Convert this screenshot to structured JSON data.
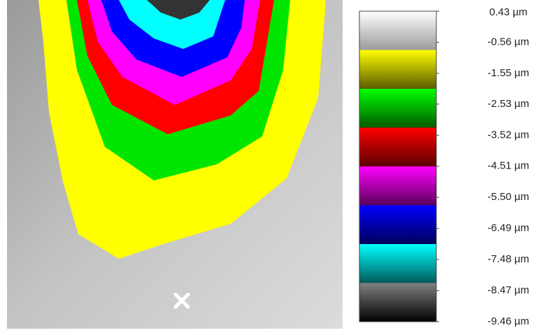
{
  "chart_data": {
    "type": "height-map",
    "colorbar_colors": [
      "#ffffff",
      "#ffff00",
      "#00ff00",
      "#ff0000",
      "#ff00ff",
      "#0000ff",
      "#00ffff",
      "#808080"
    ],
    "ylim": [
      -9.46,
      0.43
    ],
    "yticks": [
      {
        "value": 0.43,
        "label": "0.43 µm"
      },
      {
        "value": -0.56,
        "label": "-0.56 µm"
      },
      {
        "value": -1.55,
        "label": "-1.55 µm"
      },
      {
        "value": -2.53,
        "label": "-2.53 µm"
      },
      {
        "value": -3.52,
        "label": "-3.52 µm"
      },
      {
        "value": -4.51,
        "label": "-4.51 µm"
      },
      {
        "value": -5.5,
        "label": "-5.50 µm"
      },
      {
        "value": -6.49,
        "label": "-6.49 µm"
      },
      {
        "value": -7.48,
        "label": "-7.48 µm"
      },
      {
        "value": -8.47,
        "label": "-8.47 µm"
      },
      {
        "value": -9.46,
        "label": "-9.46 µm"
      }
    ]
  }
}
